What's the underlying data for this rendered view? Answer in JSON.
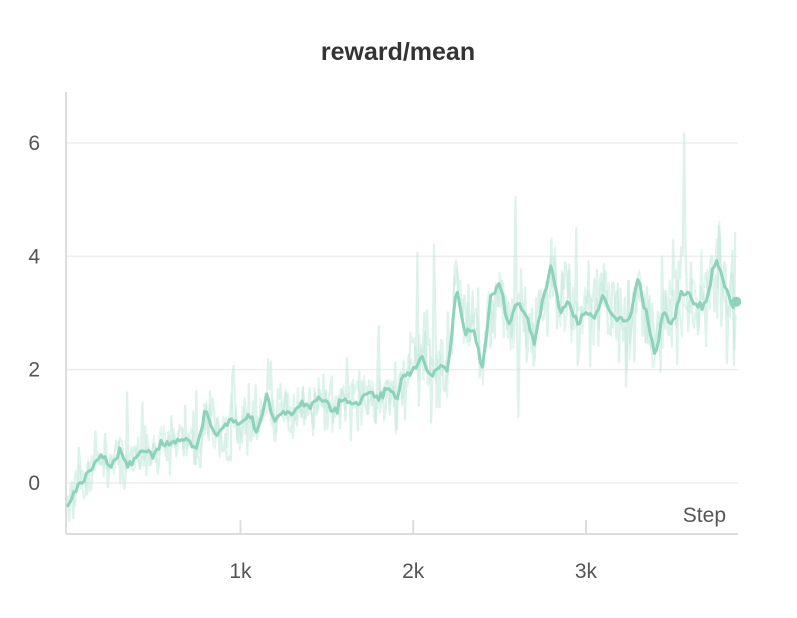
{
  "chart_data": {
    "type": "line",
    "title": "reward/mean",
    "xlabel": "Step",
    "ylabel": "",
    "xlim": [
      -10,
      3880
    ],
    "ylim": [
      -0.9,
      6.9
    ],
    "x_ticks": [
      {
        "value": 1000,
        "label": "1k"
      },
      {
        "value": 2000,
        "label": "2k"
      },
      {
        "value": 3000,
        "label": "3k"
      }
    ],
    "y_ticks": [
      {
        "value": 0,
        "label": "0"
      },
      {
        "value": 2,
        "label": "2"
      },
      {
        "value": 4,
        "label": "4"
      },
      {
        "value": 6,
        "label": "6"
      }
    ],
    "grid": true,
    "legend": "none",
    "colors": {
      "series": "#8dd3bb",
      "raw": "#bfe7d9",
      "grid": "#eeeeee",
      "axis": "#dddddd",
      "text": "#555555",
      "title": "#333333"
    },
    "series": [
      {
        "x": [
          0,
          50,
          100,
          150,
          200,
          250,
          300,
          350,
          400,
          450,
          500,
          550,
          600,
          650,
          700,
          750,
          800,
          850,
          900,
          950,
          1000,
          1050,
          1100,
          1150,
          1200,
          1250,
          1300,
          1350,
          1400,
          1450,
          1500,
          1550,
          1600,
          1650,
          1700,
          1750,
          1800,
          1850,
          1900,
          1950,
          2000,
          2050,
          2100,
          2150,
          2200,
          2250,
          2300,
          2350,
          2400,
          2450,
          2500,
          2550,
          2600,
          2650,
          2700,
          2750,
          2800,
          2850,
          2900,
          2950,
          3000,
          3050,
          3100,
          3150,
          3200,
          3250,
          3300,
          3350,
          3400,
          3450,
          3500,
          3550,
          3600,
          3650,
          3700,
          3750,
          3800,
          3850,
          3870
        ],
        "y": [
          -0.4,
          -0.1,
          0.1,
          0.3,
          0.5,
          0.3,
          0.55,
          0.3,
          0.45,
          0.6,
          0.5,
          0.7,
          0.65,
          0.8,
          0.75,
          0.6,
          1.3,
          0.8,
          1.0,
          1.1,
          1.0,
          1.2,
          0.9,
          1.5,
          1.1,
          1.3,
          1.2,
          1.4,
          1.3,
          1.5,
          1.4,
          1.3,
          1.5,
          1.4,
          1.5,
          1.6,
          1.5,
          1.7,
          1.5,
          1.9,
          2.0,
          2.2,
          1.9,
          2.1,
          2.0,
          3.5,
          2.6,
          2.7,
          2.0,
          3.3,
          3.5,
          2.8,
          3.2,
          3.0,
          2.5,
          3.2,
          3.9,
          3.0,
          3.2,
          2.8,
          3.0,
          2.9,
          3.3,
          3.0,
          2.9,
          2.8,
          3.6,
          3.0,
          2.2,
          3.0,
          2.8,
          3.4,
          3.3,
          3.1,
          3.2,
          4.0,
          3.5,
          3.1,
          3.2
        ]
      }
    ]
  }
}
